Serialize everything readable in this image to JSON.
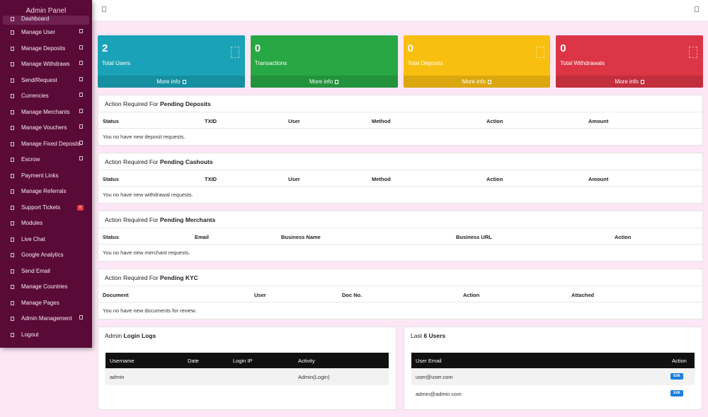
{
  "sidebar": {
    "brand": "Admin Panel",
    "items": [
      {
        "label": "Dashboard",
        "active": true,
        "chevron": false
      },
      {
        "label": "Manage User",
        "chevron": true
      },
      {
        "label": "Manage Deposits",
        "chevron": true
      },
      {
        "label": "Manage Withdraws",
        "chevron": true
      },
      {
        "label": "Send/Request",
        "chevron": true
      },
      {
        "label": "Currencies",
        "chevron": true
      },
      {
        "label": "Manage Merchants",
        "chevron": true
      },
      {
        "label": "Manage Vouchers",
        "chevron": true
      },
      {
        "label": "Manage Fixed Deposits",
        "chevron": true
      },
      {
        "label": "Escrow",
        "chevron": true
      },
      {
        "label": "Payment Links",
        "chevron": false
      },
      {
        "label": "Manage Referrals",
        "chevron": false
      },
      {
        "label": "Support Tickets",
        "chevron": false,
        "badge": "6"
      },
      {
        "label": "Modules",
        "chevron": false
      },
      {
        "label": "Live Chat",
        "chevron": false
      },
      {
        "label": "Google Analytics",
        "chevron": false
      },
      {
        "label": "Send Email",
        "chevron": false
      },
      {
        "label": "Manage Countries",
        "chevron": false
      },
      {
        "label": "Manage Pages",
        "chevron": false
      },
      {
        "label": "Admin Management",
        "chevron": true
      },
      {
        "label": "Logout",
        "chevron": false
      }
    ]
  },
  "cards": [
    {
      "value": "2",
      "label": "Total Users",
      "more": "More info",
      "color": "#1aa3b8"
    },
    {
      "value": "0",
      "label": "Transactions",
      "more": "More info",
      "color": "#28a745"
    },
    {
      "value": "0",
      "label": "Total Deposits",
      "more": "More info",
      "color": "#f9bf10"
    },
    {
      "value": "0",
      "label": "Total Withdrawals",
      "more": "More info",
      "color": "#dc3545"
    }
  ],
  "panels": {
    "deposits": {
      "prefix": "Action Required For ",
      "title": "Pending Deposits",
      "columns": [
        "Status",
        "TXID",
        "User",
        "Method",
        "Action",
        "Amount"
      ],
      "empty": "You no have new deposit requests."
    },
    "cashouts": {
      "prefix": "Action Required For ",
      "title": "Pending Cashouts",
      "columns": [
        "Status",
        "TXID",
        "User",
        "Method",
        "Action",
        "Amount"
      ],
      "empty": "You no have new withdrawal requests."
    },
    "merchants": {
      "prefix": "Action Required For ",
      "title": "Pending Merchants",
      "columns": [
        "Status",
        "Email",
        "Business Name",
        "Business URL",
        "Action"
      ],
      "empty": "You no have new merchant requests."
    },
    "kyc": {
      "prefix": "Action Required For ",
      "title": "Pending KYC",
      "columns": [
        "Document",
        "User",
        "Doc No.",
        "Action",
        "Attached"
      ],
      "empty": "You no have new documents for review."
    }
  },
  "login_logs": {
    "prefix": "Admin ",
    "title": "Login Logs",
    "columns": [
      "Username",
      "Date",
      "Login IP",
      "Activity"
    ],
    "rows": [
      {
        "username": "admin",
        "date": "",
        "ip": "",
        "activity": "Admin(Login)"
      }
    ]
  },
  "last_users": {
    "prefix": "Last ",
    "title": "6 Users",
    "columns": [
      "User Email",
      "Action"
    ],
    "rows": [
      {
        "email": "user@user.com",
        "action": "Edit"
      },
      {
        "email": "admin@admin.com",
        "action": "Edit"
      }
    ]
  }
}
